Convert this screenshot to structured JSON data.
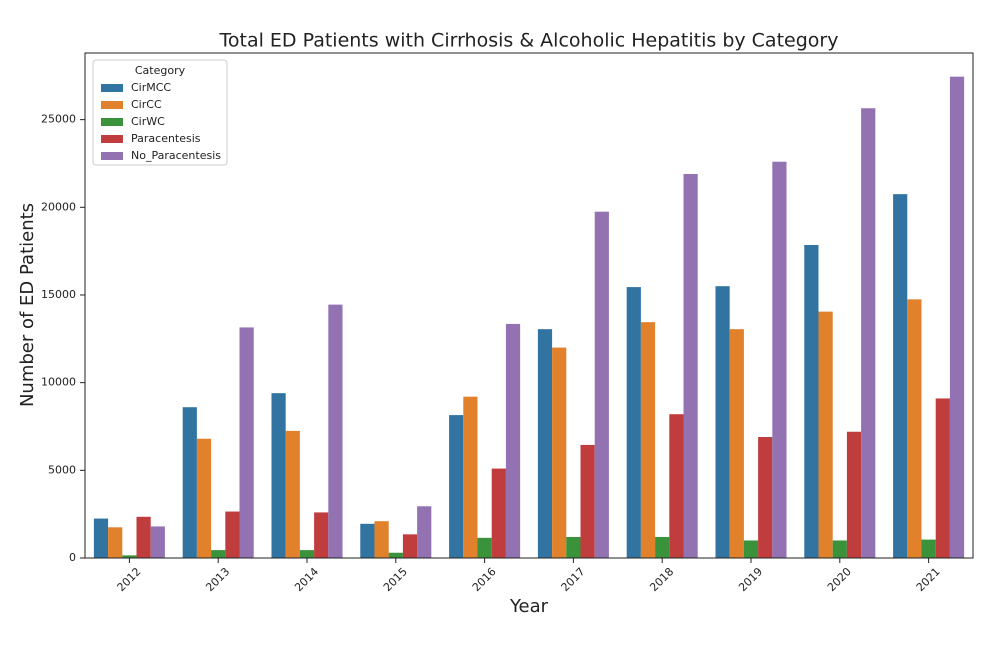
{
  "chart_data": {
    "type": "bar",
    "title": "Total ED Patients with Cirrhosis & Alcoholic Hepatitis by Category",
    "x_label": "Year",
    "y_label": "Number of ED Patients",
    "legend_title": "Category",
    "legend_position": "upper-left",
    "categories": [
      "2012",
      "2013",
      "2014",
      "2015",
      "2016",
      "2017",
      "2018",
      "2019",
      "2020",
      "2021"
    ],
    "series": [
      {
        "name": "CirMCC",
        "color": "#3274a1",
        "values": [
          2250,
          8600,
          9400,
          1950,
          8150,
          13050,
          15450,
          15500,
          17850,
          20750
        ]
      },
      {
        "name": "CirCC",
        "color": "#e1812c",
        "values": [
          1750,
          6800,
          7250,
          2100,
          9200,
          12000,
          13450,
          13050,
          14050,
          14750
        ]
      },
      {
        "name": "CirWC",
        "color": "#3a923a",
        "values": [
          150,
          450,
          450,
          300,
          1150,
          1200,
          1200,
          1000,
          1000,
          1050
        ]
      },
      {
        "name": "Paracentesis",
        "color": "#c03d3e",
        "values": [
          2350,
          2650,
          2600,
          1350,
          5100,
          6450,
          8200,
          6900,
          7200,
          9100
        ]
      },
      {
        "name": "No_Paracentesis",
        "color": "#9372b2",
        "values": [
          1800,
          13150,
          14450,
          2950,
          13350,
          19750,
          21900,
          22600,
          25650,
          27450
        ]
      }
    ],
    "ylim": [
      0,
      28800
    ],
    "yticks": [
      0,
      5000,
      10000,
      15000,
      20000,
      25000
    ],
    "grid": false
  }
}
